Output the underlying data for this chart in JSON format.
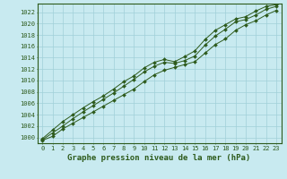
{
  "title": "Graphe pression niveau de la mer (hPa)",
  "bg_color": "#c8eaf0",
  "plot_bg_color": "#c8eaf0",
  "grid_color": "#a0d0d8",
  "line_color": "#2d5a1b",
  "border_color": "#2d5a1b",
  "marker_color": "#2d5a1b",
  "x_values": [
    0,
    1,
    2,
    3,
    4,
    5,
    6,
    7,
    8,
    9,
    10,
    11,
    12,
    13,
    14,
    15,
    16,
    17,
    18,
    19,
    20,
    21,
    22,
    23
  ],
  "y_min": [
    999.5,
    1000.2,
    1001.5,
    1002.5,
    1003.5,
    1004.5,
    1005.5,
    1006.5,
    1007.5,
    1008.5,
    1009.8,
    1011.0,
    1011.8,
    1012.3,
    1012.8,
    1013.3,
    1014.8,
    1016.3,
    1017.3,
    1018.8,
    1019.8,
    1020.5,
    1021.5,
    1022.3
  ],
  "y_mid": [
    999.6,
    1000.8,
    1002.0,
    1003.3,
    1004.5,
    1005.6,
    1006.7,
    1007.8,
    1009.0,
    1010.2,
    1011.5,
    1012.5,
    1013.2,
    1013.0,
    1013.5,
    1014.3,
    1016.2,
    1017.8,
    1019.0,
    1020.3,
    1020.7,
    1021.5,
    1022.5,
    1023.0
  ],
  "y_max": [
    999.8,
    1001.3,
    1002.8,
    1004.0,
    1005.2,
    1006.3,
    1007.3,
    1008.5,
    1009.8,
    1010.8,
    1012.2,
    1013.2,
    1013.7,
    1013.3,
    1014.2,
    1015.2,
    1017.2,
    1018.8,
    1019.8,
    1020.8,
    1021.2,
    1022.2,
    1023.0,
    1023.3
  ],
  "ylim": [
    999,
    1023
  ],
  "ytick_min": 1000,
  "ytick_max": 1022,
  "ytick_step": 2,
  "xlim_min": 0,
  "xlim_max": 23,
  "title_fontsize": 6.5,
  "tick_fontsize": 5.0,
  "linewidth": 0.7,
  "markersize": 2.0
}
